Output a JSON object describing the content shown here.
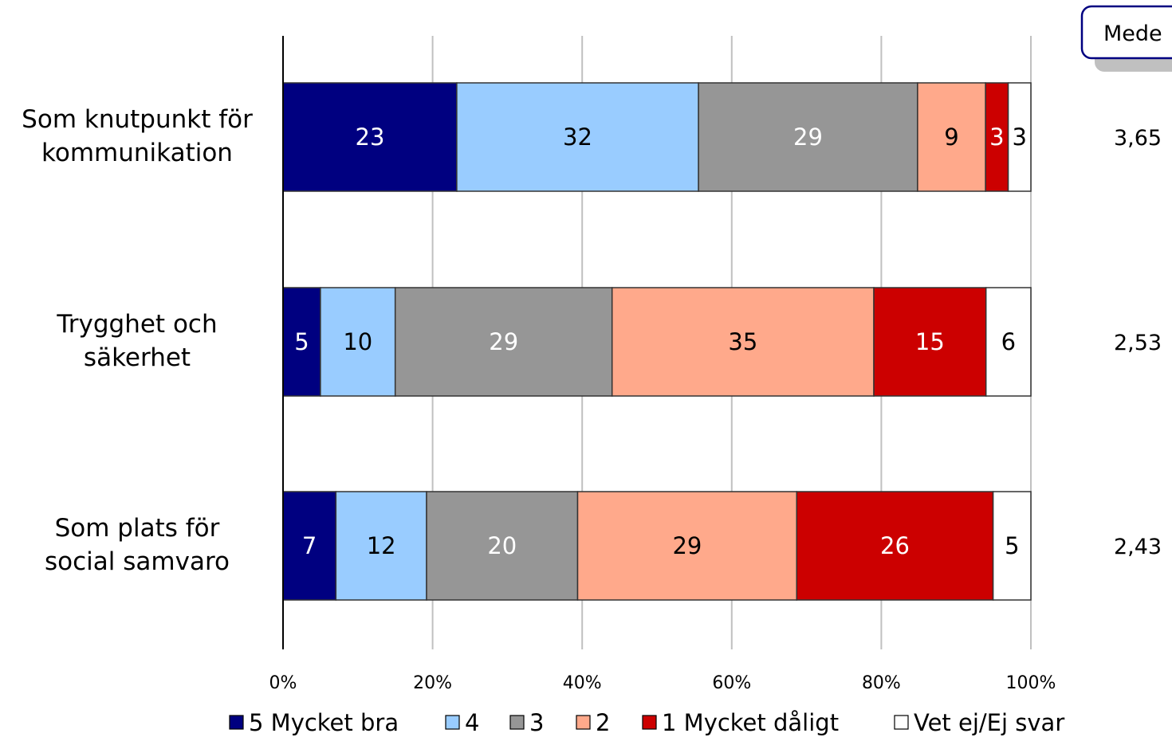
{
  "chart_data": {
    "type": "bar",
    "orientation": "horizontal",
    "stacked": true,
    "percent_scale": true,
    "categories": [
      "Som knutpunkt för kommunikation",
      "Trygghet och säkerhet",
      "Som plats för social samvaro"
    ],
    "category_lines": [
      [
        "Som knutpunkt för",
        "kommunikation"
      ],
      [
        "Trygghet och",
        "säkerhet"
      ],
      [
        "Som plats för",
        "social samvaro"
      ]
    ],
    "series": [
      {
        "name": "5 Mycket bra",
        "color": "#000080",
        "label_color": "#ffffff",
        "values": [
          23,
          5,
          7
        ]
      },
      {
        "name": "4",
        "color": "#99ccff",
        "label_color": "#000000",
        "values": [
          32,
          10,
          12
        ]
      },
      {
        "name": "3",
        "color": "#969696",
        "label_color": "#ffffff",
        "values": [
          29,
          29,
          20
        ]
      },
      {
        "name": "2",
        "color": "#ffa98b",
        "label_color": "#000000",
        "values": [
          9,
          35,
          29
        ]
      },
      {
        "name": "1 Mycket dåligt",
        "color": "#cc0000",
        "label_color": "#ffffff",
        "values": [
          3,
          15,
          26
        ]
      },
      {
        "name": "Vet ej/Ej svar",
        "color": "#ffffff",
        "label_color": "#000000",
        "values": [
          3,
          6,
          5
        ]
      }
    ],
    "xlim": [
      0,
      100
    ],
    "x_ticks": [
      "0%",
      "20%",
      "40%",
      "60%",
      "80%",
      "100%"
    ],
    "gridlines": true,
    "legend_position": "bottom",
    "mean_header": "Mede",
    "means": [
      "3,65",
      "2,53",
      "2,43"
    ]
  }
}
